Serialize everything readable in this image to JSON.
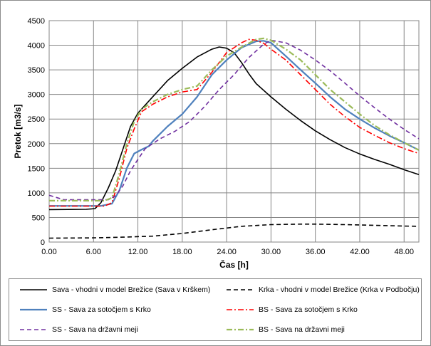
{
  "chart_data": {
    "type": "line",
    "xlabel": "Čas [h]",
    "ylabel": "Pretok [m3/s]",
    "xlim": [
      0,
      50
    ],
    "ylim": [
      0,
      4500
    ],
    "xticks": [
      0,
      6,
      12,
      18,
      24,
      30,
      36,
      42,
      48
    ],
    "xtick_labels": [
      "0.00",
      "6.00",
      "12.00",
      "18.00",
      "24.00",
      "30.00",
      "36.00",
      "42.00",
      "48.00"
    ],
    "yticks": [
      0,
      500,
      1000,
      1500,
      2000,
      2500,
      3000,
      3500,
      4000,
      4500
    ],
    "ytick_labels": [
      "0",
      "500",
      "1000",
      "1500",
      "2000",
      "2500",
      "3000",
      "3500",
      "4000",
      "4500"
    ],
    "grid": true,
    "legend_position": "bottom",
    "series": [
      {
        "name": "Sava - vhodni v model Brežice (Sava v Krškem)",
        "color": "#000000",
        "dash": "solid",
        "points": [
          [
            0,
            660
          ],
          [
            5,
            665
          ],
          [
            6.2,
            680
          ],
          [
            7,
            800
          ],
          [
            8,
            1100
          ],
          [
            9,
            1450
          ],
          [
            10,
            1900
          ],
          [
            11,
            2350
          ],
          [
            12,
            2620
          ],
          [
            14,
            2950
          ],
          [
            16,
            3280
          ],
          [
            18,
            3530
          ],
          [
            20,
            3760
          ],
          [
            22,
            3920
          ],
          [
            23,
            3965
          ],
          [
            24,
            3940
          ],
          [
            25,
            3850
          ],
          [
            26,
            3650
          ],
          [
            27,
            3420
          ],
          [
            28,
            3220
          ],
          [
            30,
            2950
          ],
          [
            32,
            2700
          ],
          [
            34,
            2470
          ],
          [
            36,
            2260
          ],
          [
            38,
            2080
          ],
          [
            40,
            1920
          ],
          [
            42,
            1790
          ],
          [
            44,
            1680
          ],
          [
            46,
            1580
          ],
          [
            48,
            1470
          ],
          [
            50,
            1370
          ]
        ]
      },
      {
        "name": "Krka - vhodni v model Brežice (Krka v Podbočju)",
        "color": "#000000",
        "dash": "dashed",
        "points": [
          [
            0,
            80
          ],
          [
            6,
            85
          ],
          [
            10,
            100
          ],
          [
            14,
            120
          ],
          [
            18,
            175
          ],
          [
            22,
            250
          ],
          [
            26,
            320
          ],
          [
            30,
            355
          ],
          [
            34,
            365
          ],
          [
            36,
            365
          ],
          [
            40,
            355
          ],
          [
            44,
            340
          ],
          [
            48,
            325
          ],
          [
            50,
            320
          ]
        ]
      },
      {
        "name": "SS - Sava za sotočjem s Krko",
        "color": "#4f81bd",
        "dash": "solid",
        "points": [
          [
            0,
            735
          ],
          [
            7,
            735
          ],
          [
            8.5,
            780
          ],
          [
            9.5,
            1050
          ],
          [
            10.5,
            1500
          ],
          [
            11.5,
            1800
          ],
          [
            12.5,
            1880
          ],
          [
            13.5,
            1950
          ],
          [
            14,
            2050
          ],
          [
            16,
            2350
          ],
          [
            18,
            2600
          ],
          [
            20,
            2950
          ],
          [
            22,
            3400
          ],
          [
            24,
            3700
          ],
          [
            26,
            3950
          ],
          [
            28,
            4080
          ],
          [
            29,
            4090
          ],
          [
            30,
            4050
          ],
          [
            32,
            3780
          ],
          [
            34,
            3500
          ],
          [
            36,
            3230
          ],
          [
            38,
            2950
          ],
          [
            40,
            2700
          ],
          [
            42,
            2500
          ],
          [
            44,
            2320
          ],
          [
            46,
            2160
          ],
          [
            48,
            2020
          ],
          [
            50,
            1870
          ]
        ]
      },
      {
        "name": "BS - Sava za sotočjem s Krko",
        "color": "#ff0000",
        "dash": "dashdot",
        "points": [
          [
            0,
            730
          ],
          [
            7.5,
            730
          ],
          [
            8.5,
            800
          ],
          [
            9.5,
            1300
          ],
          [
            10.5,
            1900
          ],
          [
            11.5,
            2300
          ],
          [
            12.5,
            2650
          ],
          [
            14,
            2800
          ],
          [
            16,
            2950
          ],
          [
            18,
            3050
          ],
          [
            20,
            3100
          ],
          [
            22,
            3450
          ],
          [
            24,
            3850
          ],
          [
            26,
            4050
          ],
          [
            27,
            4120
          ],
          [
            28,
            4100
          ],
          [
            29,
            4040
          ],
          [
            30,
            3920
          ],
          [
            32,
            3700
          ],
          [
            34,
            3400
          ],
          [
            36,
            3100
          ],
          [
            38,
            2800
          ],
          [
            40,
            2550
          ],
          [
            42,
            2330
          ],
          [
            44,
            2170
          ],
          [
            46,
            2020
          ],
          [
            48,
            1900
          ],
          [
            50,
            1800
          ]
        ]
      },
      {
        "name": "SS - Sava na državni meji",
        "color": "#7030a0",
        "dash": "dashed",
        "points": [
          [
            0,
            950
          ],
          [
            2,
            860
          ],
          [
            6,
            860
          ],
          [
            8,
            860
          ],
          [
            9,
            940
          ],
          [
            10,
            1150
          ],
          [
            11,
            1450
          ],
          [
            12,
            1680
          ],
          [
            13,
            1900
          ],
          [
            15,
            2100
          ],
          [
            17,
            2250
          ],
          [
            19,
            2450
          ],
          [
            21,
            2750
          ],
          [
            23,
            3100
          ],
          [
            25,
            3400
          ],
          [
            27,
            3750
          ],
          [
            29,
            4020
          ],
          [
            30,
            4100
          ],
          [
            32,
            4050
          ],
          [
            34,
            3900
          ],
          [
            36,
            3700
          ],
          [
            38,
            3480
          ],
          [
            40,
            3230
          ],
          [
            42,
            2970
          ],
          [
            44,
            2730
          ],
          [
            46,
            2500
          ],
          [
            48,
            2290
          ],
          [
            50,
            2100
          ]
        ]
      },
      {
        "name": "BS - Sava na državni meji",
        "color": "#9bbb59",
        "dash": "dashdot",
        "points": [
          [
            0,
            840
          ],
          [
            7.5,
            840
          ],
          [
            8.5,
            900
          ],
          [
            9.5,
            1400
          ],
          [
            10.5,
            2000
          ],
          [
            11.5,
            2450
          ],
          [
            12.5,
            2700
          ],
          [
            14,
            2850
          ],
          [
            16,
            3000
          ],
          [
            18,
            3100
          ],
          [
            20,
            3170
          ],
          [
            22,
            3500
          ],
          [
            24,
            3780
          ],
          [
            26,
            3960
          ],
          [
            28,
            4120
          ],
          [
            29,
            4140
          ],
          [
            30,
            4100
          ],
          [
            32,
            3920
          ],
          [
            34,
            3700
          ],
          [
            36,
            3400
          ],
          [
            38,
            3100
          ],
          [
            40,
            2850
          ],
          [
            42,
            2600
          ],
          [
            44,
            2370
          ],
          [
            46,
            2180
          ],
          [
            48,
            2020
          ],
          [
            50,
            1870
          ]
        ]
      }
    ]
  }
}
